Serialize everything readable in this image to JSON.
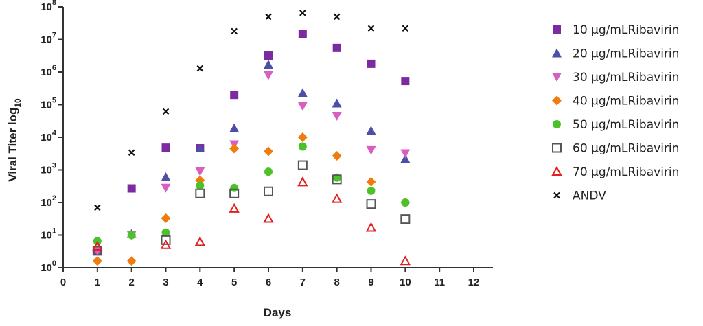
{
  "chart_data": {
    "type": "scatter",
    "xlabel": "Days",
    "ylabel": {
      "base": "Viral Titer log",
      "sub": "10"
    },
    "x_ticks": [
      "0",
      "1",
      "2",
      "3",
      "4",
      "5",
      "6",
      "7",
      "8",
      "9",
      "10",
      "11",
      "12"
    ],
    "y_ticks": [
      {
        "base": "10",
        "exp": "0"
      },
      {
        "base": "10",
        "exp": "1"
      },
      {
        "base": "10",
        "exp": "2"
      },
      {
        "base": "10",
        "exp": "3"
      },
      {
        "base": "10",
        "exp": "4"
      },
      {
        "base": "10",
        "exp": "5"
      },
      {
        "base": "10",
        "exp": "6"
      },
      {
        "base": "10",
        "exp": "7"
      },
      {
        "base": "10",
        "exp": "8"
      }
    ],
    "xlim": [
      0,
      12
    ],
    "ylim": [
      1,
      100000000
    ],
    "y_scale": "log",
    "grid": false,
    "legend_position": "right",
    "series": [
      {
        "name": "10 µg/mLRibavirin",
        "marker": "square",
        "color": "#7b2b9f",
        "x": [
          1,
          2,
          3,
          4,
          5,
          6,
          7,
          8,
          9,
          10
        ],
        "y": [
          3.5,
          270,
          4800,
          4600,
          200000,
          3200000,
          15000000,
          5500000,
          1800000,
          530000
        ]
      },
      {
        "name": "20 µg/mLRibavirin",
        "marker": "triangle-up",
        "color": "#4b4fa8",
        "x": [
          1,
          2,
          3,
          4,
          5,
          6,
          7,
          8,
          9,
          10
        ],
        "y": [
          3.2,
          11,
          600,
          4600,
          19000,
          1700000,
          230000,
          110000,
          16000,
          2200
        ]
      },
      {
        "name": "30 µg/mLRibavirin",
        "marker": "triangle-down",
        "color": "#d85fc1",
        "x": [
          1,
          2,
          3,
          4,
          5,
          6,
          7,
          8,
          9,
          10
        ],
        "y": [
          3.2,
          10,
          280,
          900,
          6000,
          800000,
          90000,
          45000,
          4000,
          3200
        ]
      },
      {
        "name": "40 µg/mLRibavirin",
        "marker": "diamond",
        "color": "#f07c0f",
        "x": [
          1,
          2,
          3,
          4,
          5,
          6,
          7,
          8,
          9,
          10
        ],
        "y": [
          1.6,
          1.6,
          33,
          480,
          4500,
          3700,
          10000,
          2700,
          430,
          100
        ]
      },
      {
        "name": "50 µg/mLRibavirin",
        "marker": "circle",
        "color": "#4cc12a",
        "x": [
          1,
          2,
          3,
          4,
          5,
          6,
          7,
          8,
          9,
          10
        ],
        "y": [
          6.5,
          10,
          12,
          330,
          280,
          880,
          5200,
          580,
          230,
          100
        ]
      },
      {
        "name": "60 µg/mLRibavirin",
        "marker": "square-open",
        "color": "#555555",
        "x": [
          1,
          3,
          4,
          5,
          6,
          7,
          8,
          9,
          10
        ],
        "y": [
          3.3,
          7,
          190,
          190,
          220,
          1400,
          510,
          90,
          31
        ]
      },
      {
        "name": "70 µg/mLRibavirin",
        "marker": "triangle-open",
        "color": "#e02020",
        "x": [
          1,
          3,
          4,
          5,
          6,
          7,
          8,
          9,
          10
        ],
        "y": [
          4.5,
          5,
          6.2,
          65,
          32,
          420,
          130,
          17,
          1.6
        ]
      },
      {
        "name": "ANDV",
        "marker": "x",
        "color": "#111111",
        "x": [
          1,
          2,
          3,
          4,
          5,
          6,
          7,
          8,
          9,
          10
        ],
        "y": [
          70,
          3400,
          62000,
          1300000,
          18000000,
          50000000,
          65000000,
          50000000,
          22000000,
          22000000
        ]
      }
    ]
  }
}
